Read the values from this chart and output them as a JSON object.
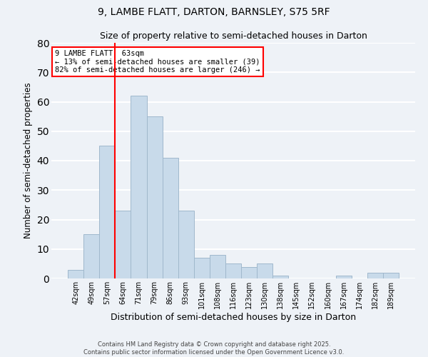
{
  "title": "9, LAMBE FLATT, DARTON, BARNSLEY, S75 5RF",
  "subtitle": "Size of property relative to semi-detached houses in Darton",
  "xlabel": "Distribution of semi-detached houses by size in Darton",
  "ylabel": "Number of semi-detached properties",
  "bar_color": "#c8daea",
  "bar_edge_color": "#a0b8cc",
  "background_color": "#eef2f7",
  "grid_color": "white",
  "categories": [
    "42sqm",
    "49sqm",
    "57sqm",
    "64sqm",
    "71sqm",
    "79sqm",
    "86sqm",
    "93sqm",
    "101sqm",
    "108sqm",
    "116sqm",
    "123sqm",
    "130sqm",
    "138sqm",
    "145sqm",
    "152sqm",
    "160sqm",
    "167sqm",
    "174sqm",
    "182sqm",
    "189sqm"
  ],
  "values": [
    3,
    15,
    45,
    23,
    62,
    55,
    41,
    23,
    7,
    8,
    5,
    4,
    5,
    1,
    0,
    0,
    0,
    1,
    0,
    2,
    2
  ],
  "vline_x": 3.5,
  "vline_color": "red",
  "annotation_title": "9 LAMBE FLATT: 63sqm",
  "annotation_line1": "← 13% of semi-detached houses are smaller (39)",
  "annotation_line2": "82% of semi-detached houses are larger (246) →",
  "annotation_box_color": "white",
  "annotation_box_edge": "red",
  "ylim": [
    0,
    80
  ],
  "yticks": [
    0,
    10,
    20,
    30,
    40,
    50,
    60,
    70,
    80
  ],
  "footer_line1": "Contains HM Land Registry data © Crown copyright and database right 2025.",
  "footer_line2": "Contains public sector information licensed under the Open Government Licence v3.0."
}
